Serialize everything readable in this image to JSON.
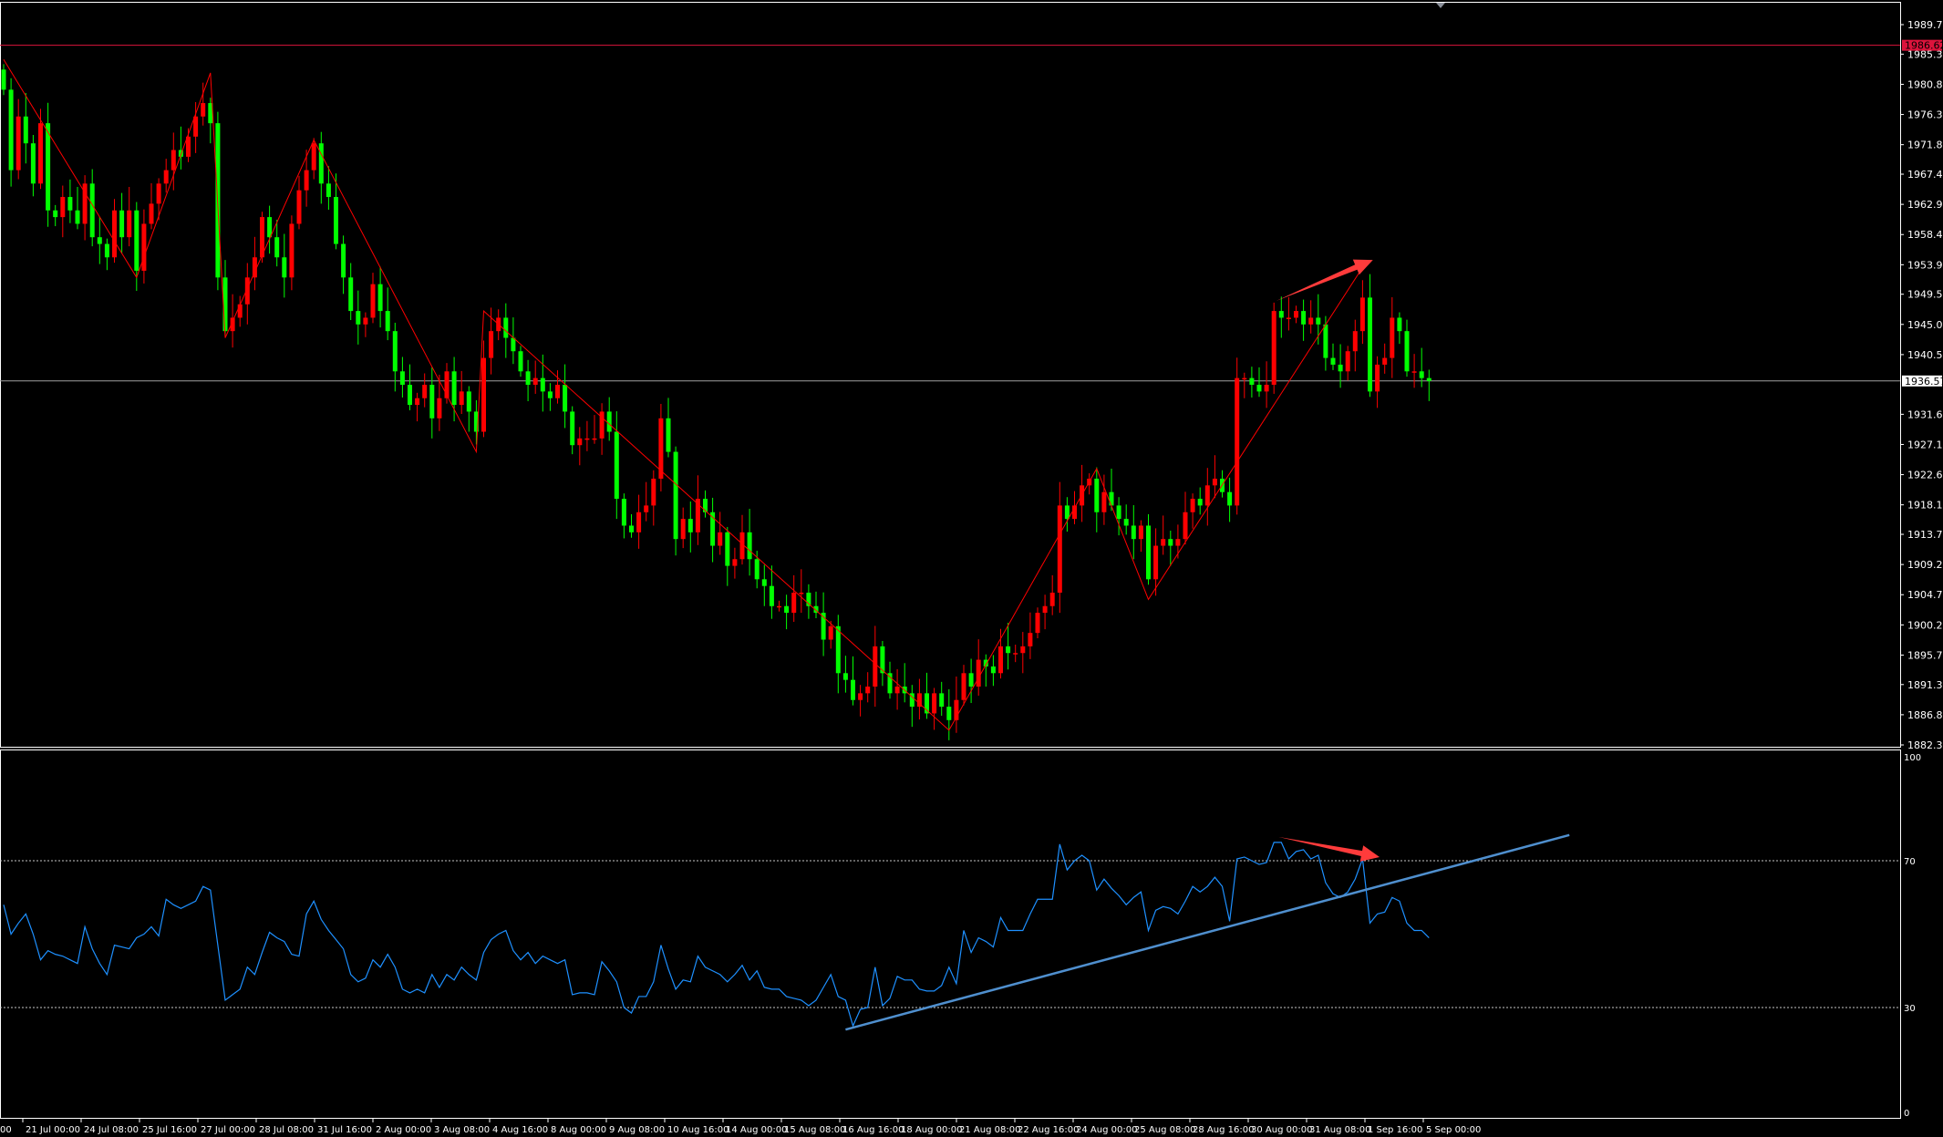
{
  "colors": {
    "background": "#000000",
    "frame": "#ffffff",
    "bull_candle": "#ff0000",
    "bear_candle": "#00ff00",
    "zigzag": "#ff0000",
    "rsi_line": "#1e90ff",
    "rsi_trendline": "#4f8fce",
    "arrow": "#ff3b3b",
    "ask_line": "#dc143c",
    "bid_line": "#a0a0a0"
  },
  "chart_data": [
    {
      "type": "candlestick",
      "pane": "price",
      "ylim": [
        1882.3,
        1989.7
      ],
      "grid": false,
      "y_ticks": [
        "1989.70",
        "1985.30",
        "1980.80",
        "1976.30",
        "1971.80",
        "1967.40",
        "1962.90",
        "1958.40",
        "1953.90",
        "1949.50",
        "1945.00",
        "1940.50",
        "1931.60",
        "1927.10",
        "1922.60",
        "1918.10",
        "1913.70",
        "1909.20",
        "1904.70",
        "1900.20",
        "1895.70",
        "1891.30",
        "1886.80",
        "1882.30"
      ],
      "closes": [
        1980,
        1968,
        1976,
        1972,
        1966,
        1975,
        1962,
        1961,
        1964,
        1962,
        1960,
        1966,
        1958,
        1957,
        1955,
        1962,
        1958,
        1962,
        1953,
        1960,
        1963,
        1966,
        1968,
        1971,
        1970,
        1973,
        1976,
        1978,
        1975,
        1952,
        1944,
        1946,
        1948,
        1952,
        1955,
        1961,
        1958,
        1955,
        1952,
        1960,
        1965,
        1968,
        1972,
        1966,
        1964,
        1957,
        1952,
        1947,
        1945,
        1946,
        1951,
        1947,
        1944,
        1938,
        1936,
        1933,
        1934,
        1936,
        1931,
        1934,
        1938,
        1933,
        1935,
        1932,
        1929,
        1940,
        1944,
        1946,
        1943,
        1941,
        1938,
        1936,
        1937,
        1935,
        1934,
        1936,
        1932,
        1927,
        1928,
        1928,
        1928,
        1932,
        1929,
        1919,
        1915,
        1914,
        1917,
        1918,
        1922,
        1931,
        1926,
        1913,
        1916,
        1914,
        1919,
        1917,
        1912,
        1914,
        1909,
        1910,
        1914,
        1910,
        1907,
        1906,
        1903,
        1903,
        1902,
        1905,
        1905,
        1903,
        1902,
        1898,
        1900,
        1893,
        1892,
        1889,
        1890,
        1891,
        1897,
        1893,
        1890,
        1891,
        1890,
        1888,
        1890,
        1887,
        1890,
        1888,
        1886,
        1889,
        1893,
        1891,
        1895,
        1894,
        1893,
        1897,
        1896,
        1896,
        1897,
        1899,
        1902,
        1903,
        1905,
        1918,
        1916,
        1918,
        1921,
        1922,
        1917,
        1920,
        1918,
        1916,
        1915,
        1913,
        1915,
        1907,
        1912,
        1913,
        1912,
        1913,
        1917,
        1919,
        1918,
        1921,
        1922,
        1920,
        1918,
        1937,
        1937,
        1936,
        1935,
        1936,
        1947,
        1946,
        1946,
        1947,
        1945,
        1946,
        1945,
        1940,
        1939,
        1938,
        1941,
        1944,
        1949,
        1935,
        1939,
        1940,
        1946,
        1944,
        1938,
        1938,
        1937,
        1936.57
      ],
      "zigzag": [
        [
          0,
          1984.5
        ],
        [
          18,
          1952
        ],
        [
          28,
          1982.5
        ],
        [
          30,
          1943
        ],
        [
          42,
          1972.5
        ],
        [
          64,
          1926
        ],
        [
          65,
          1947
        ],
        [
          128,
          1884.5
        ],
        [
          148,
          1923.5
        ],
        [
          155,
          1904
        ],
        [
          184,
          1953.5
        ]
      ],
      "arrow": {
        "from": [
          172.3,
          1948.5
        ],
        "to": [
          185.4,
          1954.6
        ]
      },
      "ask_line": {
        "price": 1986.62,
        "label": "1986.62"
      },
      "bid_line": {
        "price": 1936.57,
        "label": "1936.57"
      }
    },
    {
      "type": "line",
      "pane": "rsi",
      "ylim": [
        0,
        100
      ],
      "y_ticks": [
        "100",
        "70",
        "30",
        "0"
      ],
      "levels": [
        70,
        30
      ],
      "values": [
        58,
        50,
        53,
        55.5,
        50,
        43,
        45.5,
        44.5,
        44,
        43,
        42,
        52,
        46,
        42,
        39,
        47,
        46.5,
        46,
        49,
        50,
        52,
        49.5,
        59.5,
        58,
        57,
        58,
        59,
        63,
        62,
        47,
        32,
        33.5,
        35,
        41,
        39,
        45,
        50.5,
        49,
        48,
        44.5,
        44,
        55.5,
        59,
        54,
        51,
        48.5,
        46,
        39,
        37,
        38,
        43,
        41,
        44.5,
        41,
        35,
        34,
        35,
        34,
        39,
        35.5,
        39,
        37.5,
        41,
        39,
        37.5,
        45,
        48.5,
        50,
        51,
        45.5,
        43,
        45,
        42,
        44,
        43,
        42,
        43,
        33.5,
        34,
        34,
        33.5,
        42.5,
        40,
        37,
        30,
        28.5,
        33,
        33,
        37,
        47,
        40.5,
        35,
        37.5,
        37,
        44,
        41,
        40,
        39,
        37,
        39,
        41.5,
        37.5,
        40,
        35.5,
        35,
        35,
        33,
        32.5,
        32,
        30.5,
        32,
        35.5,
        39,
        33,
        32,
        25,
        29.5,
        30,
        41,
        30.5,
        32.5,
        38.5,
        37.5,
        37.5,
        35,
        34.5,
        34.5,
        36,
        41,
        36.5,
        51,
        45,
        49,
        48,
        46.5,
        54.5,
        51,
        51,
        51,
        55.5,
        59.5,
        59.5,
        59.5,
        74.5,
        67.5,
        70,
        71.5,
        70,
        62,
        65,
        62.5,
        60.5,
        58,
        60,
        61.5,
        51,
        56.5,
        57.5,
        57,
        55.5,
        59,
        63,
        61.5,
        63,
        65.5,
        63,
        53.5,
        70.5,
        71,
        70,
        69,
        69.5,
        75,
        75,
        70.5,
        72.5,
        73,
        70.5,
        71.5,
        64,
        61,
        60,
        61.5,
        65,
        70.5,
        53,
        55.5,
        56,
        60,
        59,
        53,
        51,
        51,
        49
      ],
      "trendline": {
        "from": [
          114,
          24
        ],
        "to": [
          212,
          77
        ]
      },
      "arrow": {
        "from": [
          172.6,
          76.5
        ],
        "to": [
          186.3,
          71
        ]
      }
    }
  ],
  "time_axis": {
    "partial_label": "00",
    "labels": [
      "21 Jul 00:00",
      "24 Jul 08:00",
      "25 Jul 16:00",
      "27 Jul 00:00",
      "28 Jul 08:00",
      "31 Jul 16:00",
      "2 Aug 00:00",
      "3 Aug 08:00",
      "4 Aug 16:00",
      "8 Aug 00:00",
      "9 Aug 08:00",
      "10 Aug 16:00",
      "14 Aug 00:00",
      "15 Aug 08:00",
      "16 Aug 16:00",
      "18 Aug 00:00",
      "21 Aug 08:00",
      "22 Aug 16:00",
      "24 Aug 00:00",
      "25 Aug 08:00",
      "28 Aug 16:00",
      "30 Aug 00:00",
      "31 Aug 08:00",
      "1 Sep 16:00",
      "5 Sep 00:00"
    ]
  }
}
